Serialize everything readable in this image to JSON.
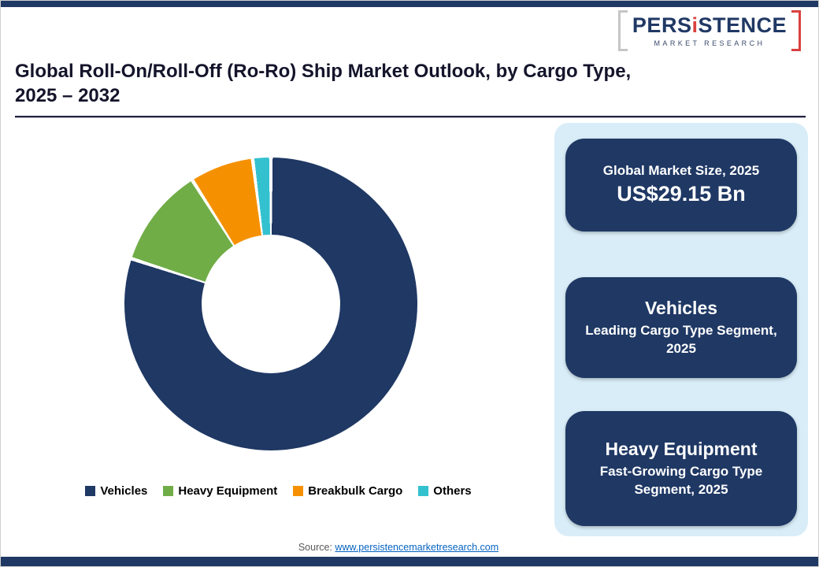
{
  "logo": {
    "part1": "PERS",
    "part2": "i",
    "part3": "STENCE",
    "subtitle": "MARKET RESEARCH"
  },
  "header": {
    "title_line1": "Global Roll-On/Roll-Off (Ro-Ro) Ship Market Outlook, by Cargo Type,",
    "title_line2": "2025 – 2032"
  },
  "chart_data": {
    "type": "pie",
    "donut": true,
    "hole_ratio": 0.47,
    "title": "",
    "categories": [
      "Vehicles",
      "Heavy Equipment",
      "Breakbulk Cargo",
      "Others"
    ],
    "values": [
      80,
      11,
      7,
      2
    ],
    "unit": "% share (estimated from donut)",
    "colors": [
      "#1F3864",
      "#70AD47",
      "#F59100",
      "#33C1CF"
    ],
    "legend_position": "bottom",
    "start_angle_deg": 0,
    "direction": "clockwise"
  },
  "panel": {
    "cards": [
      {
        "line1": "Global Market Size, 2025",
        "line2": "US$29.15 Bn"
      },
      {
        "line1": "Vehicles",
        "line2": "Leading Cargo Type Segment, 2025"
      },
      {
        "line1": "Heavy Equipment",
        "line2": "Fast-Growing Cargo Type Segment, 2025"
      }
    ]
  },
  "footer": {
    "source_label": "Source:",
    "source_link": "www.persistencemarketresearch.com"
  },
  "colors": {
    "navy": "#1F3864",
    "panel_bg": "#D8EDF8",
    "link": "#0563C1",
    "logo_red": "#d9403f"
  }
}
